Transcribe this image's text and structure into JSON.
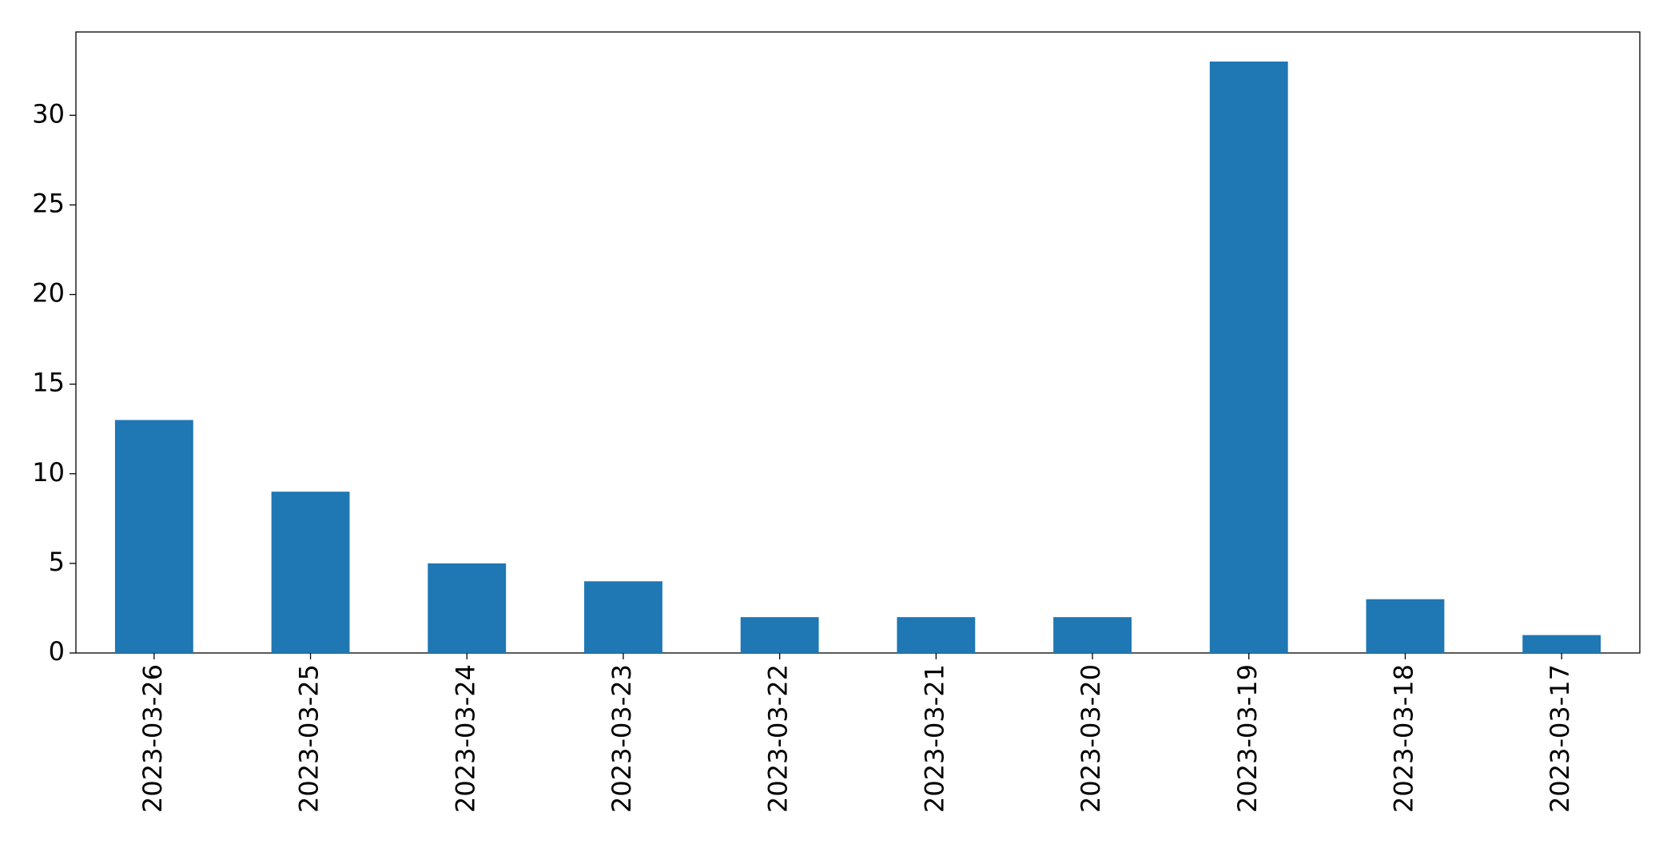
{
  "chart_data": {
    "type": "bar",
    "categories": [
      "2023-03-26",
      "2023-03-25",
      "2023-03-24",
      "2023-03-23",
      "2023-03-22",
      "2023-03-21",
      "2023-03-20",
      "2023-03-19",
      "2023-03-18",
      "2023-03-17"
    ],
    "values": [
      13,
      9,
      5,
      4,
      2,
      2,
      2,
      33,
      3,
      1
    ],
    "color": "#1f77b4",
    "ylim": [
      0,
      34.65
    ],
    "yticks": [
      0,
      5,
      10,
      15,
      20,
      25,
      30
    ],
    "grid": false
  }
}
